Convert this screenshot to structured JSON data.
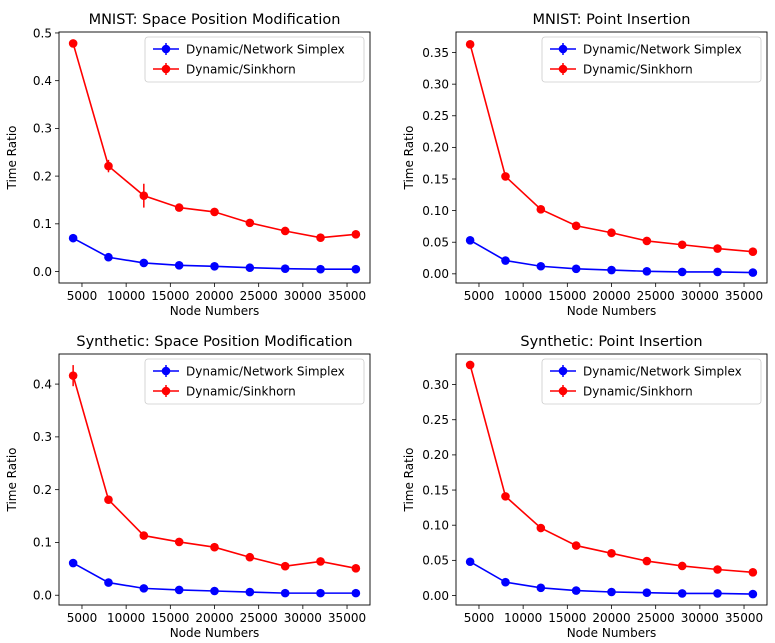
{
  "colors": {
    "series_1": "#0000ff",
    "series_2": "#ff0000",
    "axis": "#000000",
    "background": "#ffffff"
  },
  "chart_data": [
    {
      "type": "line",
      "title": "MNIST: Space Position Modification",
      "xlabel": "Node Numbers",
      "ylabel": "Time Ratio",
      "xlim": [
        2400,
        37600
      ],
      "ylim": [
        -0.024,
        0.502
      ],
      "xticks": [
        5000,
        10000,
        15000,
        20000,
        25000,
        30000,
        35000
      ],
      "yticks": [
        0.0,
        0.1,
        0.2,
        0.3,
        0.4,
        0.5
      ],
      "ytick_labels": [
        "0.0",
        "0.1",
        "0.2",
        "0.3",
        "0.4",
        "0.5"
      ],
      "legend": "top-right",
      "x": [
        4000,
        8000,
        12000,
        16000,
        20000,
        24000,
        28000,
        32000,
        36000
      ],
      "series": [
        {
          "name": "Dynamic/Network Simplex",
          "color": "#0000ff",
          "values": [
            0.07,
            0.03,
            0.018,
            0.013,
            0.011,
            0.008,
            0.006,
            0.005,
            0.005
          ],
          "errors": [
            0.002,
            0.002,
            0.001,
            0.001,
            0.001,
            0.001,
            0.001,
            0.001,
            0.001
          ]
        },
        {
          "name": "Dynamic/Sinkhorn",
          "color": "#ff0000",
          "values": [
            0.478,
            0.221,
            0.159,
            0.134,
            0.125,
            0.102,
            0.085,
            0.071,
            0.078
          ],
          "errors": [
            0.004,
            0.013,
            0.025,
            0.002,
            0.002,
            0.002,
            0.002,
            0.002,
            0.002
          ]
        }
      ]
    },
    {
      "type": "line",
      "title": "MNIST: Point Insertion",
      "xlabel": "Node Numbers",
      "ylabel": "Time Ratio",
      "xlim": [
        2400,
        37600
      ],
      "ylim": [
        -0.0145,
        0.3825
      ],
      "xticks": [
        5000,
        10000,
        15000,
        20000,
        25000,
        30000,
        35000
      ],
      "yticks": [
        0.0,
        0.05,
        0.1,
        0.15,
        0.2,
        0.25,
        0.3,
        0.35
      ],
      "ytick_labels": [
        "0.00",
        "0.05",
        "0.10",
        "0.15",
        "0.20",
        "0.25",
        "0.30",
        "0.35"
      ],
      "legend": "top-right",
      "x": [
        4000,
        8000,
        12000,
        16000,
        20000,
        24000,
        28000,
        32000,
        36000
      ],
      "series": [
        {
          "name": "Dynamic/Network Simplex",
          "color": "#0000ff",
          "values": [
            0.053,
            0.021,
            0.012,
            0.008,
            0.006,
            0.004,
            0.003,
            0.003,
            0.002
          ],
          "errors": [
            0.001,
            0.001,
            0.001,
            0.001,
            0.001,
            0.001,
            0.001,
            0.001,
            0.001
          ]
        },
        {
          "name": "Dynamic/Sinkhorn",
          "color": "#ff0000",
          "values": [
            0.363,
            0.154,
            0.102,
            0.076,
            0.065,
            0.052,
            0.046,
            0.04,
            0.035
          ],
          "errors": [
            0.002,
            0.002,
            0.002,
            0.001,
            0.001,
            0.001,
            0.001,
            0.001,
            0.001
          ]
        }
      ]
    },
    {
      "type": "line",
      "title": "Synthetic: Space Position Modification",
      "xlabel": "Node Numbers",
      "ylabel": "Time Ratio",
      "xlim": [
        2400,
        37600
      ],
      "ylim": [
        -0.0185,
        0.457
      ],
      "xticks": [
        5000,
        10000,
        15000,
        20000,
        25000,
        30000,
        35000
      ],
      "yticks": [
        0.0,
        0.1,
        0.2,
        0.3,
        0.4
      ],
      "ytick_labels": [
        "0.0",
        "0.1",
        "0.2",
        "0.3",
        "0.4"
      ],
      "legend": "top-right",
      "x": [
        4000,
        8000,
        12000,
        16000,
        20000,
        24000,
        28000,
        32000,
        36000
      ],
      "series": [
        {
          "name": "Dynamic/Network Simplex",
          "color": "#0000ff",
          "values": [
            0.061,
            0.024,
            0.013,
            0.01,
            0.008,
            0.006,
            0.004,
            0.004,
            0.004
          ],
          "errors": [
            0.001,
            0.001,
            0.001,
            0.001,
            0.001,
            0.001,
            0.001,
            0.001,
            0.001
          ]
        },
        {
          "name": "Dynamic/Sinkhorn",
          "color": "#ff0000",
          "values": [
            0.416,
            0.181,
            0.113,
            0.101,
            0.091,
            0.072,
            0.055,
            0.064,
            0.051
          ],
          "errors": [
            0.02,
            0.002,
            0.002,
            0.002,
            0.002,
            0.002,
            0.002,
            0.002,
            0.002
          ]
        }
      ]
    },
    {
      "type": "line",
      "title": "Synthetic: Point Insertion",
      "xlabel": "Node Numbers",
      "ylabel": "Time Ratio",
      "xlim": [
        2400,
        37600
      ],
      "ylim": [
        -0.0135,
        0.3435
      ],
      "xticks": [
        5000,
        10000,
        15000,
        20000,
        25000,
        30000,
        35000
      ],
      "yticks": [
        0.0,
        0.05,
        0.1,
        0.15,
        0.2,
        0.25,
        0.3
      ],
      "ytick_labels": [
        "0.00",
        "0.05",
        "0.10",
        "0.15",
        "0.20",
        "0.25",
        "0.30"
      ],
      "legend": "top-right",
      "x": [
        4000,
        8000,
        12000,
        16000,
        20000,
        24000,
        28000,
        32000,
        36000
      ],
      "series": [
        {
          "name": "Dynamic/Network Simplex",
          "color": "#0000ff",
          "values": [
            0.048,
            0.019,
            0.011,
            0.007,
            0.005,
            0.004,
            0.003,
            0.003,
            0.002
          ],
          "errors": [
            0.001,
            0.001,
            0.001,
            0.001,
            0.001,
            0.001,
            0.001,
            0.001,
            0.001
          ]
        },
        {
          "name": "Dynamic/Sinkhorn",
          "color": "#ff0000",
          "values": [
            0.328,
            0.141,
            0.096,
            0.071,
            0.06,
            0.049,
            0.042,
            0.037,
            0.033
          ],
          "errors": [
            0.002,
            0.002,
            0.002,
            0.001,
            0.001,
            0.001,
            0.001,
            0.001,
            0.001
          ]
        }
      ]
    }
  ]
}
